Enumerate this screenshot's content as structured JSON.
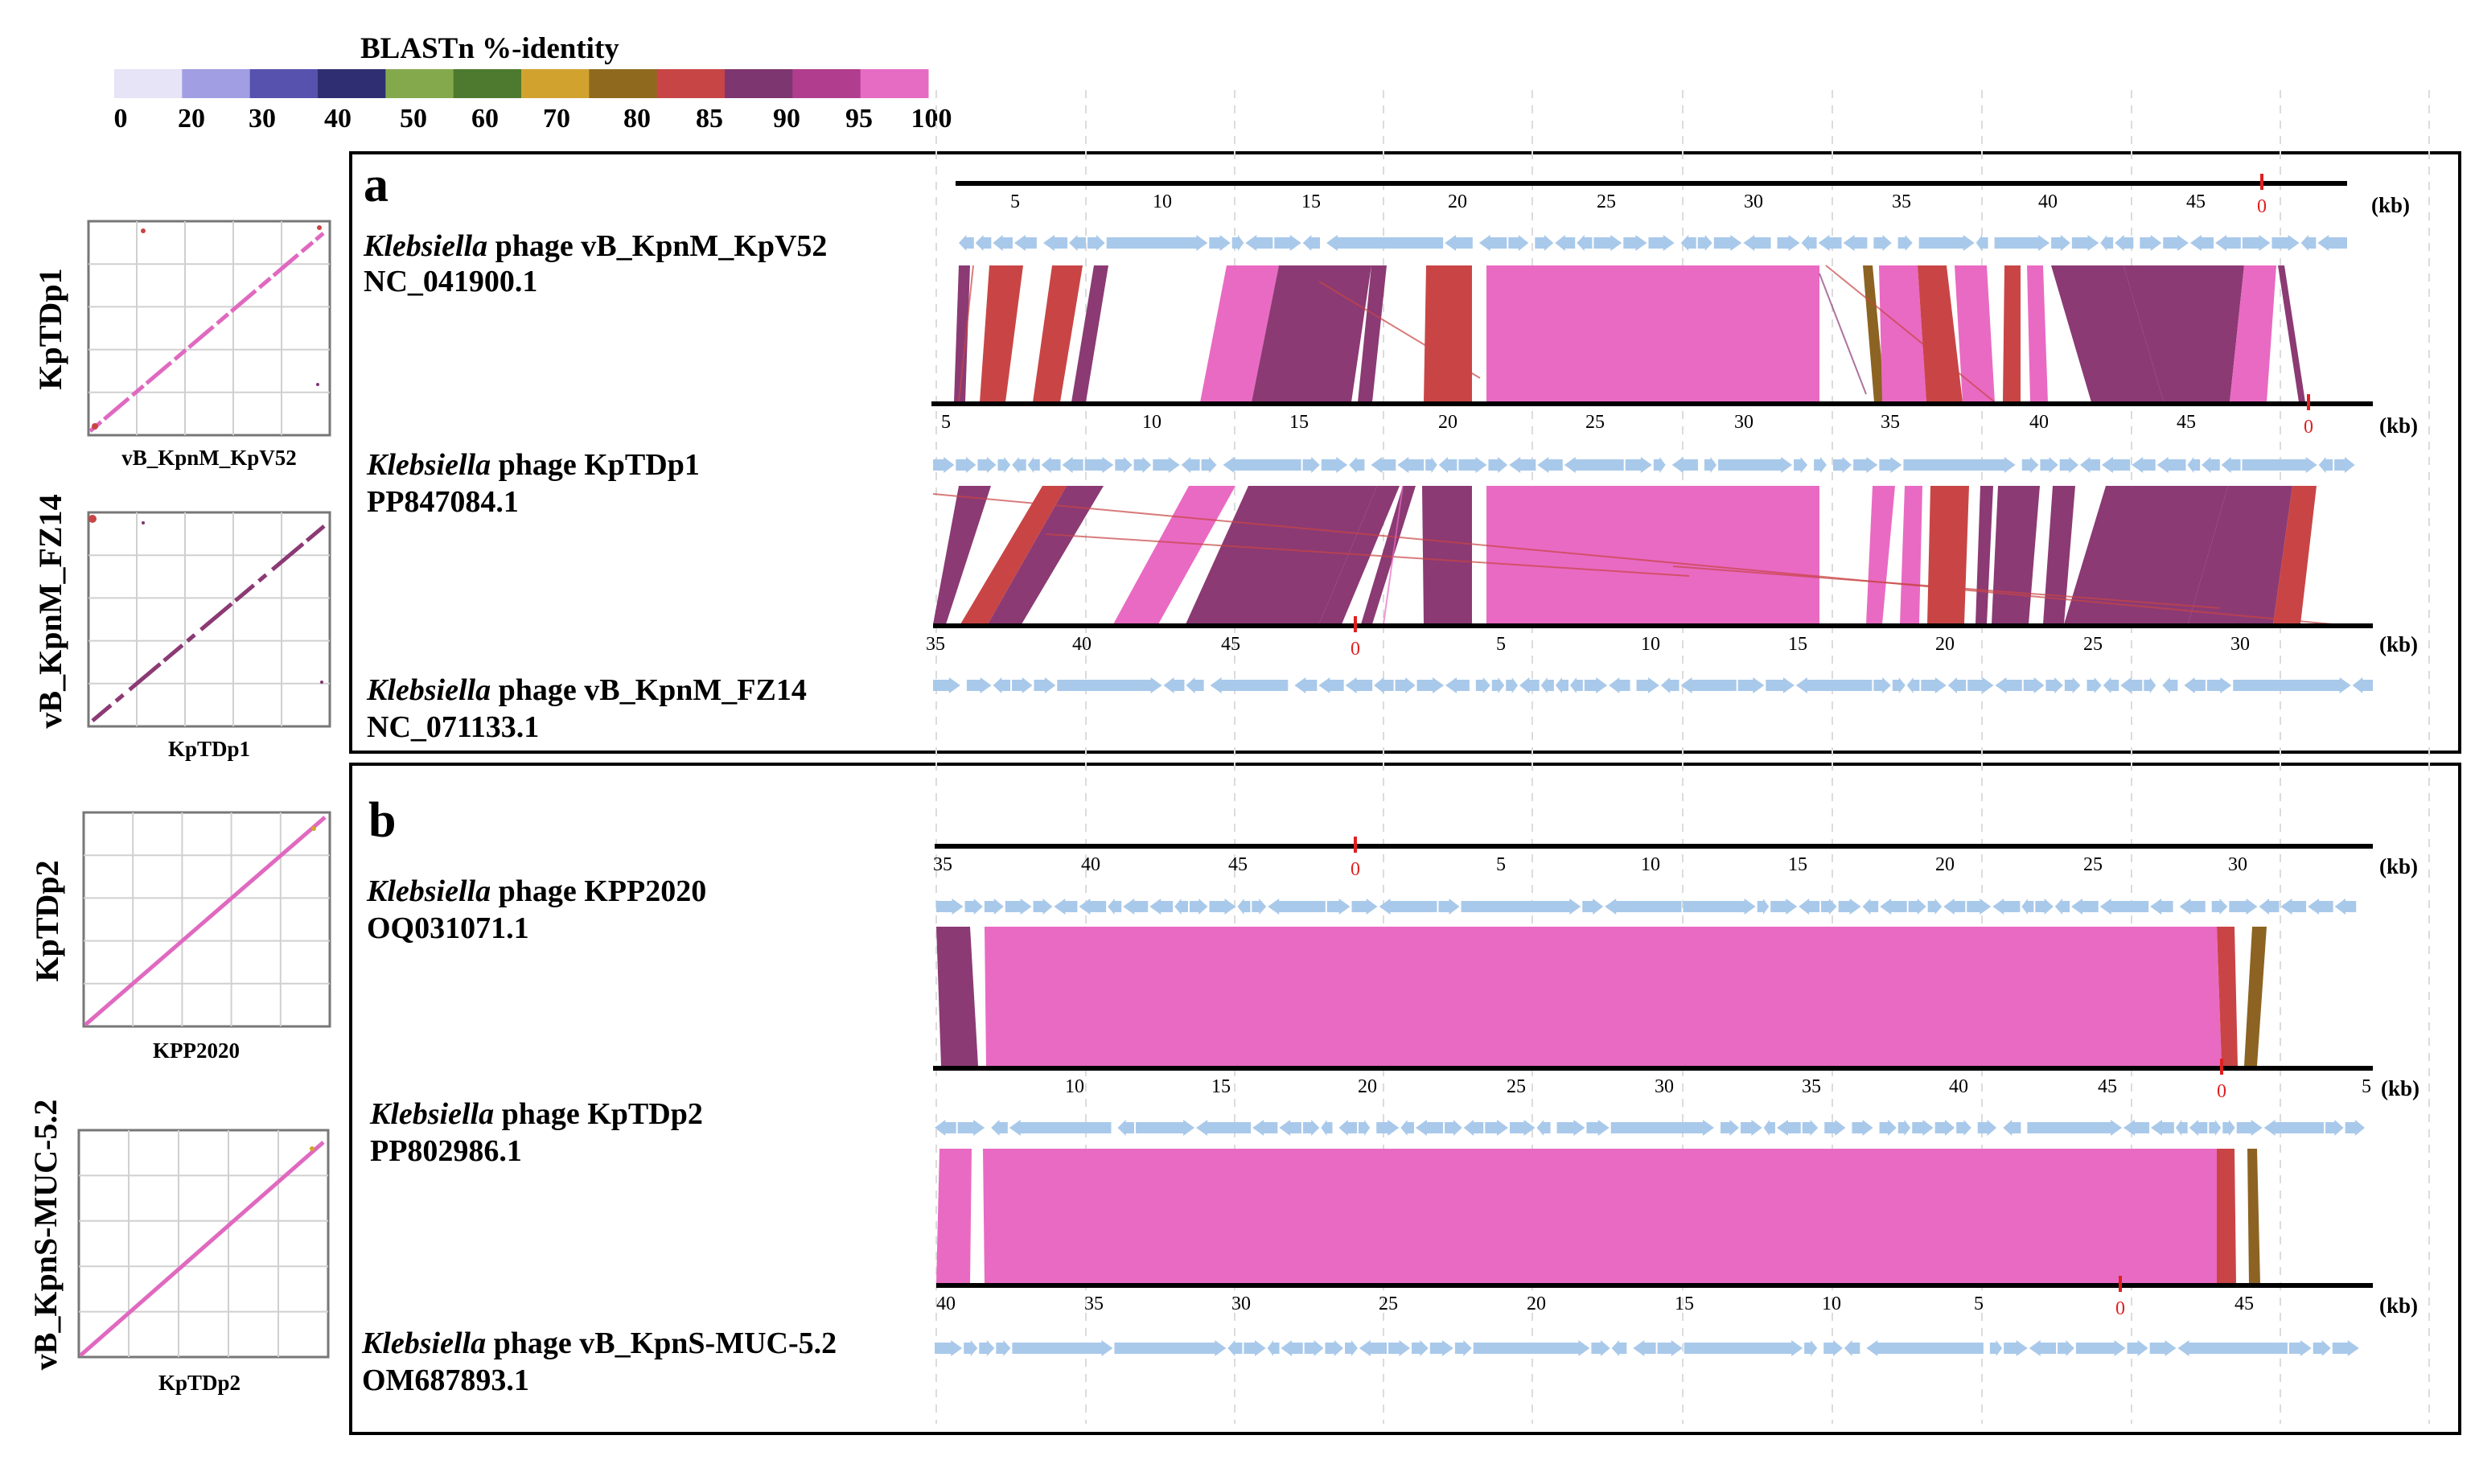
{
  "legend": {
    "title": "BLASTn %-identity",
    "ticks": [
      "0",
      "20",
      "30",
      "40",
      "50",
      "60",
      "70",
      "80",
      "85",
      "90",
      "95",
      "100"
    ],
    "colors": [
      "#e6e4f6",
      "#a19ee3",
      "#5752ad",
      "#2f2e72",
      "#84a94d",
      "#4d7a2e",
      "#d2a22f",
      "#8f6a1e",
      "#c84545",
      "#7e3670",
      "#b03d8d",
      "#e66cc3"
    ]
  },
  "colors": {
    "gene": "#a9c9ea",
    "p95": "#8b3a74",
    "p100": "#e96ac3",
    "p90": "#c94545",
    "p80": "#8c6322",
    "origin": "#e02020",
    "ruler": "#000000",
    "dots": "#e069c0"
  },
  "dotplots": [
    {
      "ylabel": "KpTDp1",
      "xlabel": "vB_KpnM_KpV52"
    },
    {
      "ylabel": "vB_KpnM_FZ14",
      "xlabel": "KpTDp1"
    },
    {
      "ylabel": "KpTDp2",
      "xlabel": "KPP2020"
    },
    {
      "ylabel": "vB_KpnS-MUC-5.2",
      "xlabel": "KpTDp2"
    }
  ],
  "panels": {
    "a": {
      "letter": "a",
      "tracks": [
        {
          "genus": "Klebsiella",
          "name": " phage vB_KpnM_KpV52",
          "acc": "NC_041900.1",
          "ticks": [
            "5",
            "10",
            "15",
            "20",
            "25",
            "30",
            "35",
            "40",
            "45",
            "0"
          ],
          "unit": "(kb)"
        },
        {
          "genus": "Klebsiella",
          "name": " phage KpTDp1",
          "acc": "PP847084.1",
          "ticks": [
            "5",
            "10",
            "15",
            "20",
            "25",
            "30",
            "35",
            "40",
            "45",
            "0"
          ],
          "unit": "(kb)"
        },
        {
          "genus": "Klebsiella",
          "name": " phage vB_KpnM_FZ14",
          "acc": "NC_071133.1",
          "ticks": [
            "35",
            "40",
            "45",
            "0",
            "5",
            "10",
            "15",
            "20",
            "25",
            "30"
          ],
          "unit": "(kb)"
        }
      ]
    },
    "b": {
      "letter": "b",
      "tracks": [
        {
          "genus": "Klebsiella",
          "name": " phage KPP2020",
          "acc": "OQ031071.1",
          "ticks": [
            "35",
            "40",
            "45",
            "0",
            "5",
            "10",
            "15",
            "20",
            "25",
            "30"
          ],
          "unit": "(kb)"
        },
        {
          "genus": "Klebsiella",
          "name": " phage KpTDp2",
          "acc": "PP802986.1",
          "ticks": [
            "10",
            "15",
            "20",
            "25",
            "30",
            "35",
            "40",
            "45",
            "0",
            "5"
          ],
          "unit": "(kb)"
        },
        {
          "genus": "Klebsiella",
          "name": " phage vB_KpnS-MUC-5.2",
          "acc": "OM687893.1",
          "ticks": [
            "40",
            "35",
            "30",
            "25",
            "20",
            "15",
            "10",
            "5",
            "0",
            "45"
          ],
          "unit": "(kb)"
        }
      ]
    }
  }
}
